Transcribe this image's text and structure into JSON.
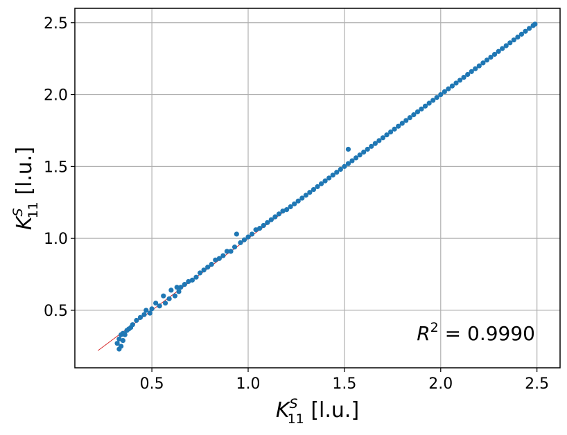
{
  "chart_data": {
    "type": "scatter",
    "xlabel": {
      "main": "K",
      "sup": "S",
      "sub": "11",
      "unit": " [l.u.]"
    },
    "ylabel": {
      "main": "K",
      "sup": "S",
      "sub": "11",
      "unit": " [l.u.]"
    },
    "xlim": [
      0.1,
      2.62
    ],
    "ylim": [
      0.1,
      2.6
    ],
    "xticks": [
      0.5,
      1.0,
      1.5,
      2.0,
      2.5
    ],
    "xtick_labels": [
      "0.5",
      "1.0",
      "1.5",
      "2.0",
      "2.5"
    ],
    "yticks": [
      0.5,
      1.0,
      1.5,
      2.0,
      2.5
    ],
    "ytick_labels": [
      "0.5",
      "1.0",
      "1.5",
      "2.0",
      "2.5"
    ],
    "grid": true,
    "annotation": {
      "main": "R",
      "sup": "2",
      "rest": " = 0.9990"
    },
    "colors": {
      "points": "#1f77b4",
      "fit_line": "#d62728",
      "grid": "#b0b0b0"
    },
    "fit_line": {
      "x": [
        0.22,
        2.49
      ],
      "y": [
        0.22,
        2.49
      ]
    },
    "series": [
      {
        "x": [
          0.32,
          0.33,
          0.33,
          0.34,
          0.34,
          0.35,
          0.35,
          0.36,
          0.37,
          0.38,
          0.39,
          0.4,
          0.42,
          0.44,
          0.46,
          0.47,
          0.49,
          0.5,
          0.52,
          0.54,
          0.56,
          0.57,
          0.59,
          0.6,
          0.62,
          0.63,
          0.64,
          0.65,
          0.67,
          0.69,
          0.71,
          0.73,
          0.75,
          0.77,
          0.79,
          0.81,
          0.83,
          0.85,
          0.87,
          0.89,
          0.91,
          0.93,
          0.94,
          0.96,
          0.98,
          1.0,
          1.02,
          1.04,
          1.06,
          1.08,
          1.1,
          1.12,
          1.14,
          1.16,
          1.18,
          1.2,
          1.22,
          1.24,
          1.26,
          1.28,
          1.3,
          1.32,
          1.34,
          1.36,
          1.38,
          1.4,
          1.42,
          1.44,
          1.46,
          1.48,
          1.5,
          1.52,
          1.52,
          1.54,
          1.56,
          1.58,
          1.6,
          1.62,
          1.64,
          1.66,
          1.68,
          1.7,
          1.72,
          1.74,
          1.76,
          1.78,
          1.8,
          1.82,
          1.84,
          1.86,
          1.88,
          1.9,
          1.92,
          1.94,
          1.96,
          1.98,
          2.0,
          2.02,
          2.04,
          2.06,
          2.08,
          2.1,
          2.12,
          2.14,
          2.16,
          2.18,
          2.2,
          2.22,
          2.24,
          2.26,
          2.28,
          2.3,
          2.32,
          2.34,
          2.36,
          2.38,
          2.4,
          2.42,
          2.44,
          2.46,
          2.48,
          2.49
        ],
        "y": [
          0.27,
          0.23,
          0.3,
          0.25,
          0.33,
          0.29,
          0.34,
          0.33,
          0.36,
          0.37,
          0.38,
          0.4,
          0.43,
          0.45,
          0.47,
          0.5,
          0.48,
          0.51,
          0.55,
          0.53,
          0.6,
          0.55,
          0.58,
          0.64,
          0.6,
          0.66,
          0.63,
          0.66,
          0.68,
          0.7,
          0.71,
          0.73,
          0.76,
          0.78,
          0.8,
          0.82,
          0.85,
          0.86,
          0.88,
          0.91,
          0.91,
          0.94,
          1.03,
          0.97,
          0.99,
          1.01,
          1.03,
          1.06,
          1.07,
          1.09,
          1.11,
          1.13,
          1.15,
          1.17,
          1.19,
          1.2,
          1.22,
          1.24,
          1.26,
          1.28,
          1.3,
          1.32,
          1.34,
          1.36,
          1.38,
          1.4,
          1.42,
          1.44,
          1.46,
          1.48,
          1.5,
          1.52,
          1.62,
          1.54,
          1.56,
          1.58,
          1.6,
          1.62,
          1.64,
          1.66,
          1.68,
          1.7,
          1.72,
          1.74,
          1.76,
          1.78,
          1.8,
          1.82,
          1.84,
          1.86,
          1.88,
          1.9,
          1.92,
          1.94,
          1.96,
          1.98,
          2.0,
          2.02,
          2.04,
          2.06,
          2.08,
          2.1,
          2.12,
          2.14,
          2.16,
          2.18,
          2.2,
          2.22,
          2.24,
          2.26,
          2.28,
          2.3,
          2.32,
          2.34,
          2.36,
          2.38,
          2.4,
          2.42,
          2.44,
          2.46,
          2.48,
          2.49
        ]
      }
    ]
  }
}
